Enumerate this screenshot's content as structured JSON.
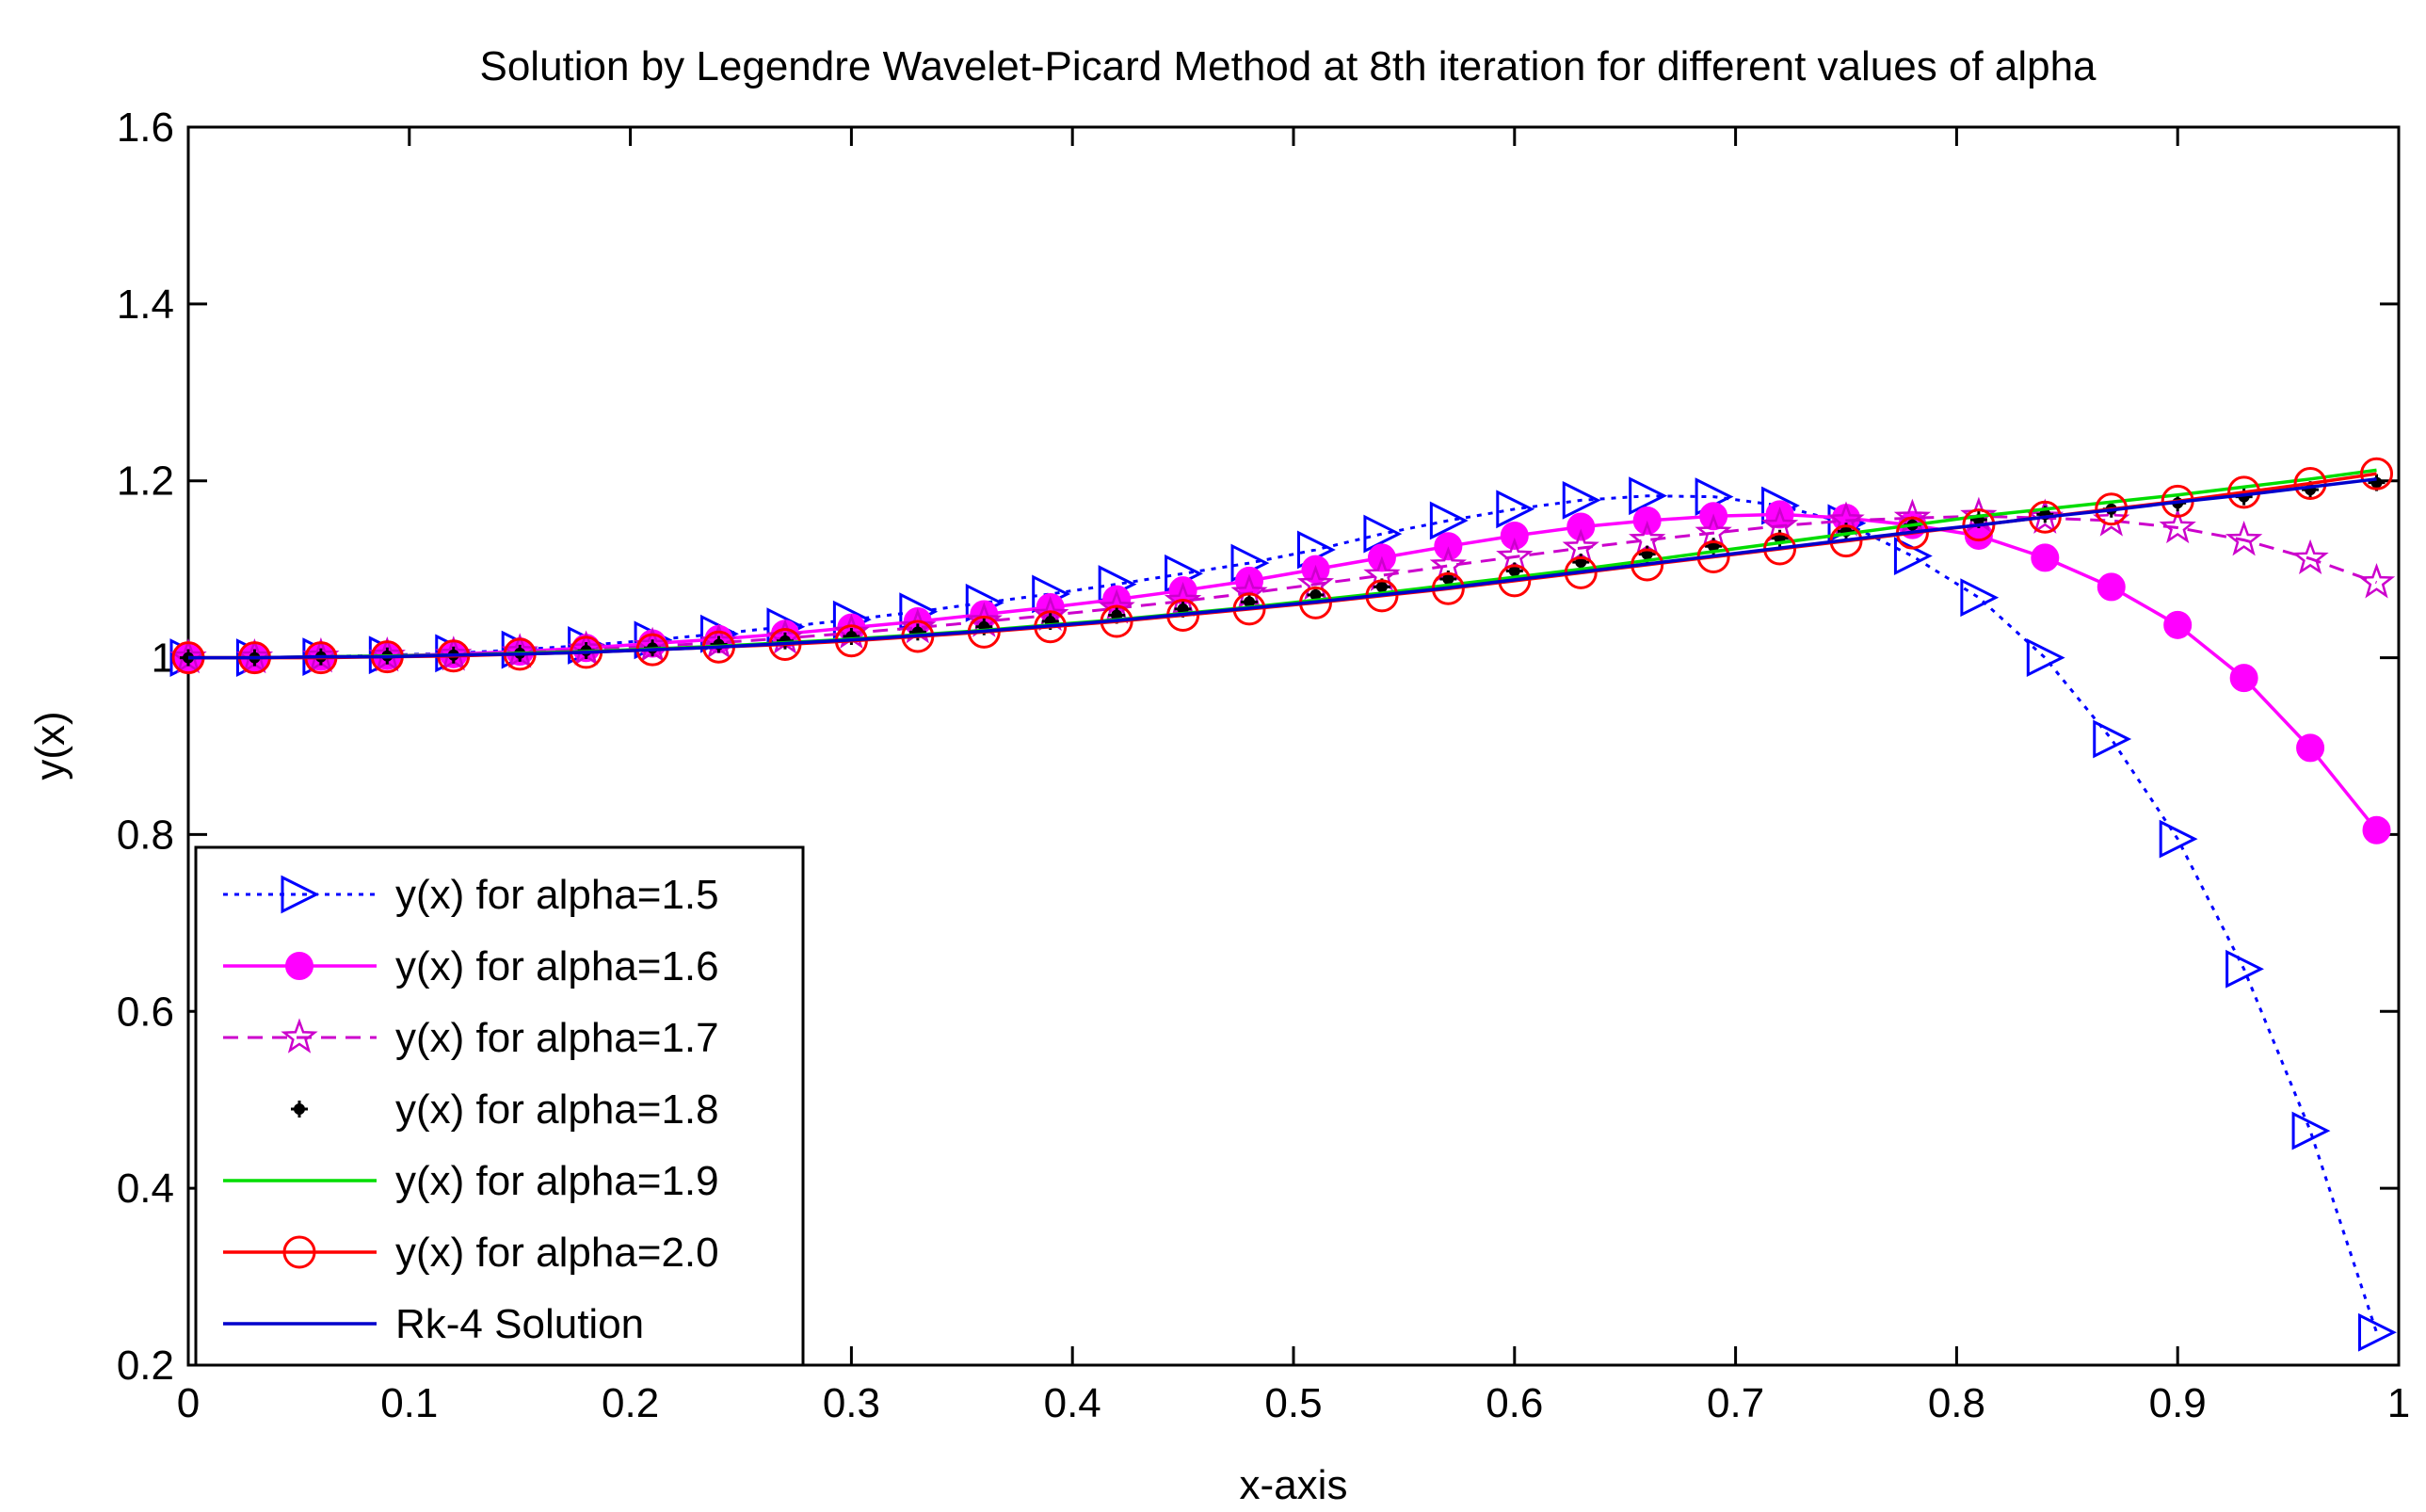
{
  "chart_data": {
    "type": "line",
    "title": "Solution by Legendre Wavelet-Picard Method at 8th iteration for different values of alpha",
    "xlabel": "x-axis",
    "ylabel": "y(x)",
    "xlim": [
      0,
      1
    ],
    "ylim": [
      0.2,
      1.6
    ],
    "xticks": [
      0,
      0.1,
      0.2,
      0.3,
      0.4,
      0.5,
      0.6,
      0.7,
      0.8,
      0.9,
      1
    ],
    "xtick_labels": [
      "0",
      "0.1",
      "0.2",
      "0.3",
      "0.4",
      "0.5",
      "0.6",
      "0.7",
      "0.8",
      "0.9",
      "1"
    ],
    "yticks": [
      0.2,
      0.4,
      0.6,
      0.8,
      1,
      1.2,
      1.4,
      1.6
    ],
    "ytick_labels": [
      "0.2",
      "0.4",
      "0.6",
      "0.8",
      "1",
      "1.2",
      "1.4",
      "1.6"
    ],
    "grid": false,
    "legend_position": "bottom-left",
    "x": [
      0,
      0.03,
      0.06,
      0.09,
      0.12,
      0.15,
      0.18,
      0.21,
      0.24,
      0.27,
      0.3,
      0.33,
      0.36,
      0.39,
      0.42,
      0.45,
      0.48,
      0.51,
      0.54,
      0.57,
      0.6,
      0.63,
      0.66,
      0.69,
      0.72,
      0.75,
      0.78,
      0.81,
      0.84,
      0.87,
      0.9,
      0.93,
      0.96,
      0.99
    ],
    "series": [
      {
        "name": "y(x) for alpha=1.5",
        "color": "#0000ff",
        "line": "dotted",
        "marker": "triangle-right",
        "values": [
          1.0,
          1.0,
          1.001,
          1.003,
          1.005,
          1.009,
          1.014,
          1.02,
          1.027,
          1.035,
          1.043,
          1.052,
          1.062,
          1.072,
          1.083,
          1.095,
          1.107,
          1.122,
          1.14,
          1.155,
          1.168,
          1.178,
          1.183,
          1.182,
          1.172,
          1.152,
          1.115,
          1.068,
          1.0,
          0.908,
          0.795,
          0.648,
          0.465,
          0.237
        ]
      },
      {
        "name": "y(x) for alpha=1.6",
        "color": "#ff00ff",
        "line": "solid",
        "marker": "filled-circle",
        "values": [
          1.0,
          1.0,
          1.001,
          1.002,
          1.004,
          1.007,
          1.011,
          1.016,
          1.021,
          1.027,
          1.034,
          1.041,
          1.049,
          1.057,
          1.066,
          1.076,
          1.087,
          1.1,
          1.113,
          1.126,
          1.138,
          1.148,
          1.155,
          1.16,
          1.162,
          1.158,
          1.15,
          1.138,
          1.113,
          1.08,
          1.037,
          0.977,
          0.898,
          0.805
        ]
      },
      {
        "name": "y(x) for alpha=1.7",
        "color": "#cc00cc",
        "line": "dashed",
        "marker": "star",
        "values": [
          1.0,
          1.0,
          1.001,
          1.002,
          1.003,
          1.006,
          1.009,
          1.013,
          1.017,
          1.022,
          1.028,
          1.034,
          1.041,
          1.048,
          1.056,
          1.064,
          1.073,
          1.083,
          1.093,
          1.104,
          1.114,
          1.124,
          1.133,
          1.141,
          1.149,
          1.155,
          1.158,
          1.16,
          1.158,
          1.155,
          1.147,
          1.133,
          1.112,
          1.085
        ]
      },
      {
        "name": "y(x) for alpha=1.8",
        "color": "#000000",
        "line": "none",
        "marker": "dot",
        "values": [
          1.0,
          1.0,
          1.001,
          1.002,
          1.003,
          1.005,
          1.008,
          1.011,
          1.015,
          1.019,
          1.024,
          1.029,
          1.035,
          1.041,
          1.048,
          1.055,
          1.063,
          1.071,
          1.08,
          1.089,
          1.098,
          1.108,
          1.117,
          1.126,
          1.135,
          1.143,
          1.15,
          1.156,
          1.162,
          1.168,
          1.175,
          1.182,
          1.19,
          1.198
        ]
      },
      {
        "name": "y(x) for alpha=1.9",
        "color": "#00dd00",
        "line": "solid",
        "marker": "none",
        "values": [
          1.0,
          1.0,
          1.001,
          1.002,
          1.003,
          1.005,
          1.007,
          1.01,
          1.013,
          1.017,
          1.021,
          1.026,
          1.031,
          1.037,
          1.043,
          1.05,
          1.057,
          1.065,
          1.073,
          1.082,
          1.091,
          1.1,
          1.11,
          1.12,
          1.13,
          1.14,
          1.15,
          1.16,
          1.168,
          1.176,
          1.184,
          1.193,
          1.202,
          1.212
        ]
      },
      {
        "name": "y(x) for alpha=2.0",
        "color": "#ff0000",
        "line": "solid",
        "marker": "open-circle",
        "values": [
          1.0,
          1.0,
          1.0,
          1.001,
          1.002,
          1.004,
          1.006,
          1.009,
          1.012,
          1.015,
          1.019,
          1.024,
          1.029,
          1.035,
          1.041,
          1.048,
          1.055,
          1.062,
          1.07,
          1.078,
          1.087,
          1.096,
          1.105,
          1.114,
          1.123,
          1.132,
          1.141,
          1.15,
          1.159,
          1.168,
          1.177,
          1.187,
          1.197,
          1.208
        ]
      },
      {
        "name": "Rk-4 Solution",
        "color": "#0000cc",
        "line": "solid",
        "marker": "none",
        "values": [
          1.0,
          1.0,
          1.001,
          1.001,
          1.003,
          1.004,
          1.006,
          1.009,
          1.012,
          1.016,
          1.02,
          1.025,
          1.03,
          1.036,
          1.042,
          1.049,
          1.056,
          1.063,
          1.071,
          1.079,
          1.088,
          1.097,
          1.106,
          1.115,
          1.124,
          1.133,
          1.142,
          1.15,
          1.159,
          1.167,
          1.176,
          1.184,
          1.193,
          1.202
        ]
      }
    ]
  }
}
